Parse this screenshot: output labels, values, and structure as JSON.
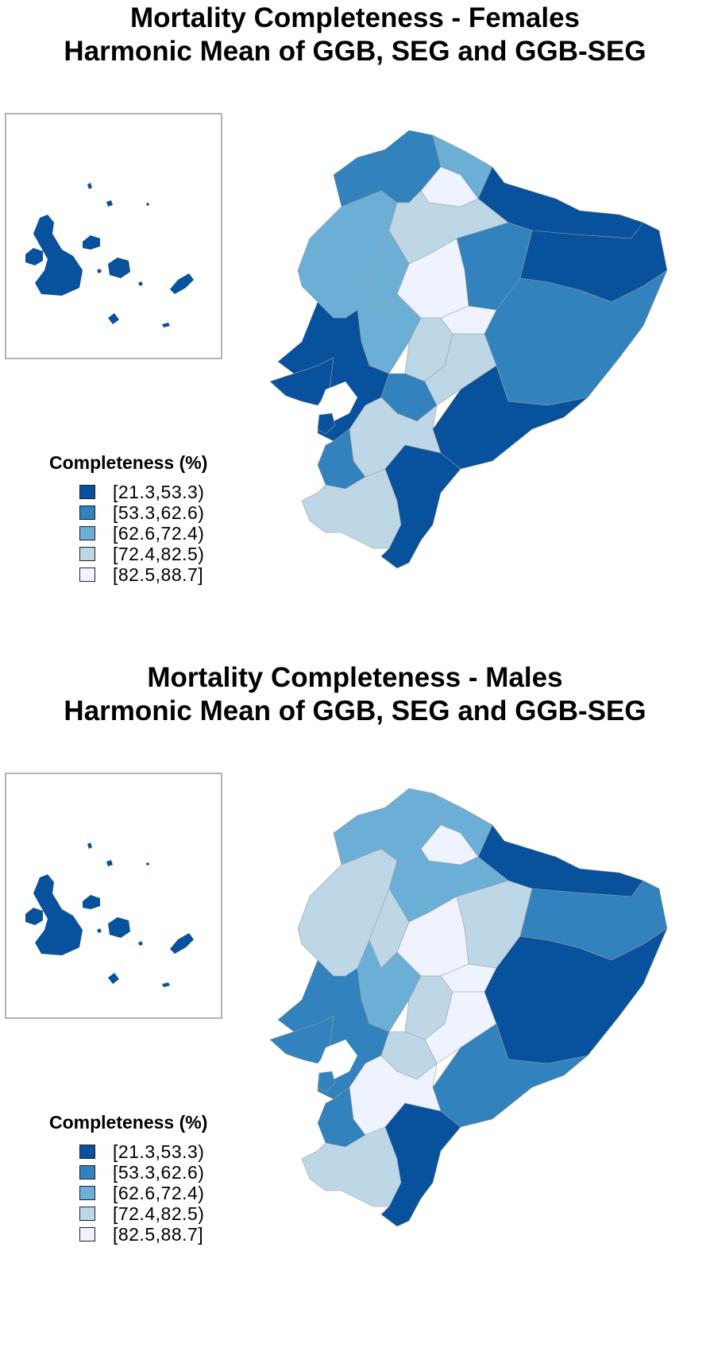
{
  "palette": [
    "#08519c",
    "#3182bd",
    "#6baed6",
    "#bdd7e7",
    "#eff3ff"
  ],
  "legend": {
    "title": "Completeness (%)",
    "classes": [
      "[21.3,53.3)",
      "[53.3,62.6)",
      "[62.6,72.4)",
      "[72.4,82.5)",
      "[82.5,88.7]"
    ]
  },
  "panels": [
    {
      "title_line1": "Mortality Completeness - Females",
      "title_line2": "Harmonic Mean of GGB, SEG and GGB-SEG",
      "galapagos_class": 0,
      "province_classes": {
        "esmeraldas": 1,
        "carchi": 2,
        "imbabura": 4,
        "sucumbios": 0,
        "manabi": 2,
        "pichincha": 3,
        "santo_domingo": 2,
        "napo": 1,
        "cotopaxi": 4,
        "tungurahua": 4,
        "orellana": 0,
        "los_rios": 2,
        "bolivar": 3,
        "chimborazo": 3,
        "pastaza": 1,
        "santa_elena": 0,
        "guayas": 0,
        "canar": 1,
        "morona_santiago": 0,
        "azuay": 3,
        "el_oro": 1,
        "loja": 3,
        "zamora": 0
      }
    },
    {
      "title_line1": "Mortality Completeness - Males",
      "title_line2": "Harmonic Mean of GGB, SEG and GGB-SEG",
      "galapagos_class": 0,
      "province_classes": {
        "esmeraldas": 2,
        "carchi": 2,
        "imbabura": 4,
        "sucumbios": 0,
        "manabi": 3,
        "pichincha": 2,
        "santo_domingo": 3,
        "napo": 3,
        "cotopaxi": 4,
        "tungurahua": 4,
        "orellana": 1,
        "los_rios": 2,
        "bolivar": 3,
        "chimborazo": 4,
        "pastaza": 0,
        "santa_elena": 1,
        "guayas": 1,
        "canar": 3,
        "morona_santiago": 1,
        "azuay": 4,
        "el_oro": 1,
        "loja": 3,
        "zamora": 0
      }
    }
  ]
}
